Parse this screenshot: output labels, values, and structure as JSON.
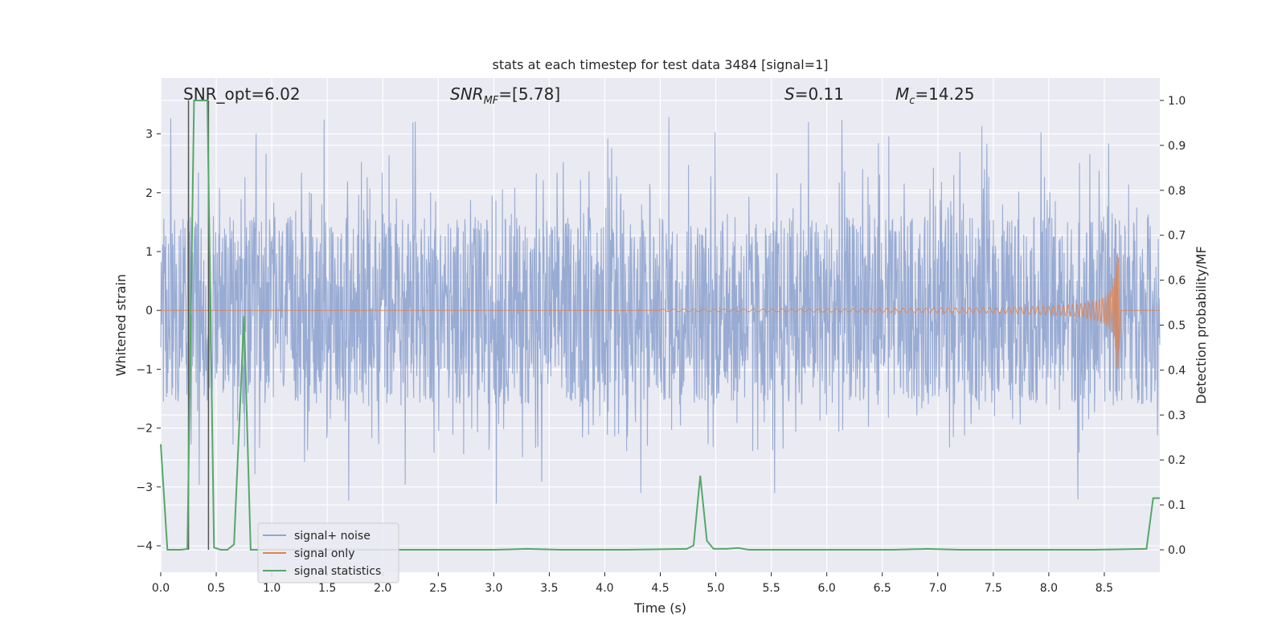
{
  "chart_data": {
    "type": "line",
    "title": "stats at each timestep for test data 3484 [signal=1]",
    "xlabel": "Time (s)",
    "ylabel": "Whitened strain",
    "ylabel_right": "Detection probability/MF",
    "xlim": [
      0.0,
      9.0
    ],
    "ylim": [
      -4.45,
      3.95
    ],
    "ylim_right": [
      -0.05,
      1.05
    ],
    "x_ticks": [
      "0.0",
      "0.5",
      "1.0",
      "1.5",
      "2.0",
      "2.5",
      "3.0",
      "3.5",
      "4.0",
      "4.5",
      "5.0",
      "5.5",
      "6.0",
      "6.5",
      "7.0",
      "7.5",
      "8.0",
      "8.5"
    ],
    "y_ticks": [
      "3",
      "2",
      "1",
      "0",
      "−1",
      "−2",
      "−3",
      "−4"
    ],
    "y_ticks_right": [
      "1.0",
      "0.9",
      "0.8",
      "0.7",
      "0.6",
      "0.5",
      "0.4",
      "0.3",
      "0.2",
      "0.1",
      "0.0"
    ],
    "grid": true,
    "legend_position": "lower-left",
    "annotations": {
      "snr_opt": "SNR_opt=6.02",
      "snr_mf_main": "SNR",
      "snr_mf_sub": "MF",
      "snr_mf_value": "=[5.78]",
      "s_main": "S",
      "s_value": "=0.11",
      "mc_main": "M",
      "mc_sub": "c",
      "mc_value": "=14.25"
    },
    "series": [
      {
        "name": "signal+ noise",
        "color": "#8fa4cf",
        "axis": "left",
        "description_values": "whitened strain noise, roughly -2 to 2 with spikes to about 3.5 and -3.4",
        "envelope": {
          "x_range": [
            0.0,
            9.0
          ],
          "typical_amplitude": 1.6,
          "peak_max": 3.55,
          "peak_min": -3.4
        }
      },
      {
        "name": "signal only",
        "color": "#dd8452",
        "axis": "left",
        "chirp": {
          "x_start": 4.5,
          "x_merger": 8.63,
          "peak_amplitude": 1.0
        }
      },
      {
        "name": "signal statistics",
        "color": "#55a868",
        "axis": "right",
        "x": [
          0.0,
          0.06,
          0.12,
          0.18,
          0.24,
          0.3,
          0.42,
          0.48,
          0.54,
          0.6,
          0.66,
          0.75,
          0.81,
          0.9,
          1.2,
          1.8,
          2.4,
          3.0,
          3.3,
          3.6,
          4.2,
          4.74,
          4.8,
          4.86,
          4.92,
          4.98,
          5.04,
          5.1,
          5.2,
          5.3,
          5.4,
          6.0,
          6.6,
          6.9,
          7.2,
          7.8,
          8.4,
          8.88,
          8.94,
          9.0
        ],
        "y": [
          0.235,
          0.0,
          0.0,
          0.0,
          0.002,
          1.0,
          1.0,
          0.005,
          0.0,
          0.0,
          0.012,
          0.52,
          0.0,
          0.0,
          0.0,
          0.0,
          0.0,
          0.0,
          0.002,
          0.0,
          0.0,
          0.002,
          0.01,
          0.165,
          0.02,
          0.002,
          0.002,
          0.002,
          0.004,
          0.0,
          0.0,
          0.0,
          0.0,
          0.002,
          0.0,
          0.0,
          0.0,
          0.002,
          0.115,
          0.115
        ]
      }
    ],
    "vertical_lines": [
      {
        "x": 0.25,
        "color": "#555555",
        "y_range_right": [
          0.0,
          1.0
        ]
      },
      {
        "x": 0.43,
        "color": "#555555",
        "y_range_right": [
          0.0,
          1.0
        ]
      }
    ]
  }
}
